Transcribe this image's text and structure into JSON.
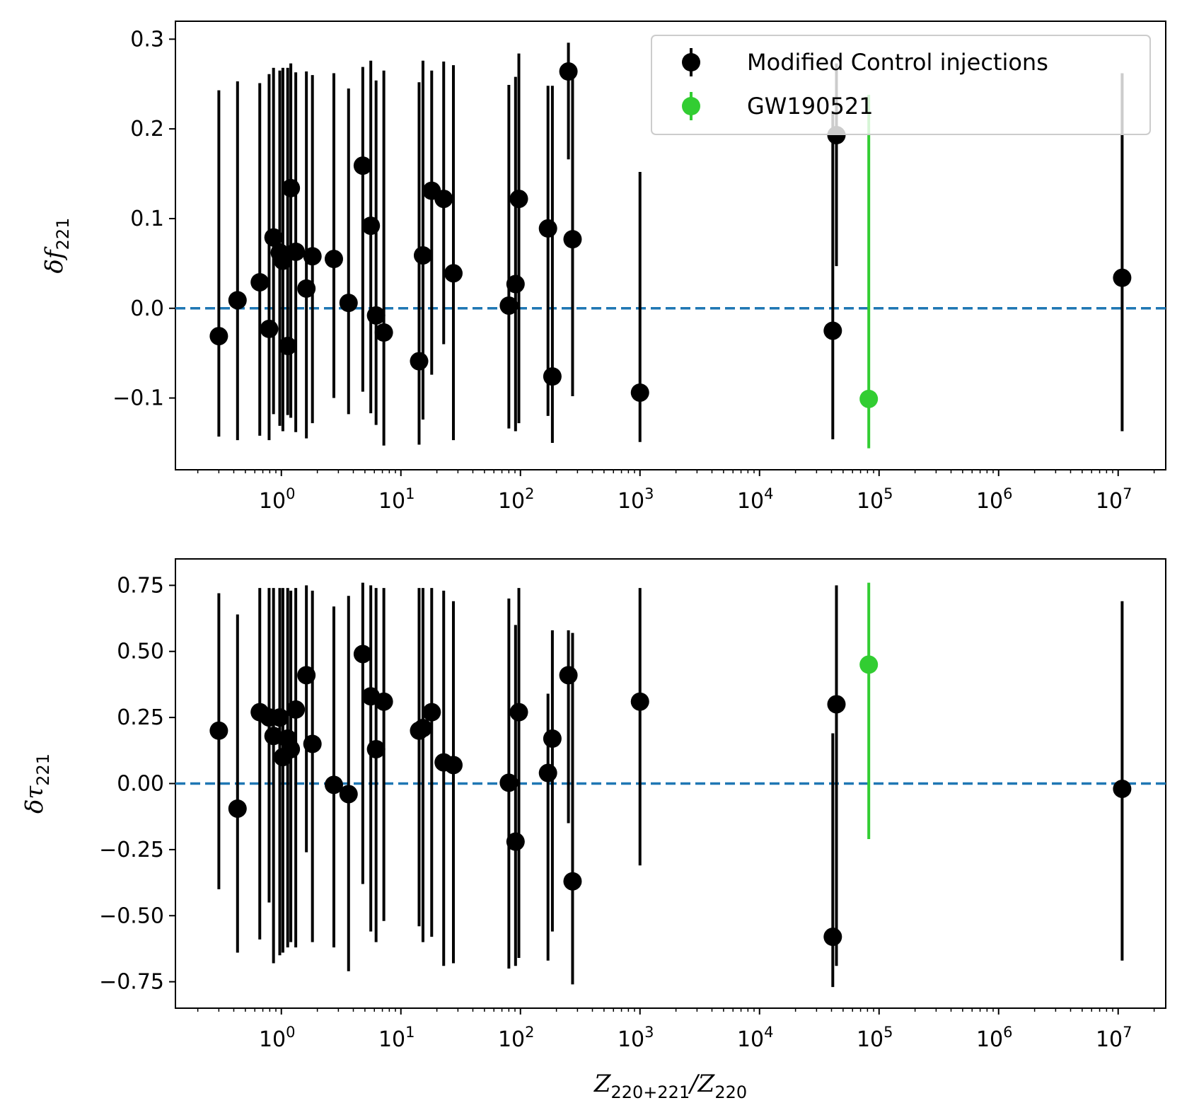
{
  "chart_data": [
    {
      "type": "scatter",
      "name": "delta-f221",
      "ylabel": "δf221",
      "ylabel_main": "δf",
      "ylabel_sub": "221",
      "xlabel": "",
      "xscale": "log",
      "xlim": [
        0.13,
        25000000
      ],
      "ylim": [
        -0.18,
        0.32
      ],
      "yticks": [
        -0.1,
        0.0,
        0.1,
        0.2,
        0.3
      ],
      "ytick_labels": [
        "−0.1",
        "0.0",
        "0.1",
        "0.2",
        "0.3"
      ],
      "xticks": [
        1,
        10,
        100,
        1000,
        10000,
        100000,
        1000000,
        10000000
      ],
      "xtick_labels": [
        {
          "base": "10",
          "exp": "0"
        },
        {
          "base": "10",
          "exp": "1"
        },
        {
          "base": "10",
          "exp": "2"
        },
        {
          "base": "10",
          "exp": "3"
        },
        {
          "base": "10",
          "exp": "4"
        },
        {
          "base": "10",
          "exp": "5"
        },
        {
          "base": "10",
          "exp": "6"
        },
        {
          "base": "10",
          "exp": "7"
        }
      ],
      "reference_line": {
        "y": 0.0,
        "style": "dashed",
        "color": "#1f77b4"
      },
      "legend": {
        "location": "top-right",
        "entries": [
          {
            "label": "Modified Control injections",
            "color": "#000000"
          },
          {
            "label": "GW190521",
            "color": "#32cd32"
          }
        ]
      },
      "series": [
        {
          "name": "Modified Control injections",
          "color": "#000000",
          "points": [
            {
              "x": 0.3,
              "y": -0.031,
              "lo": -0.143,
              "hi": 0.243
            },
            {
              "x": 0.43,
              "y": 0.009,
              "lo": -0.147,
              "hi": 0.253
            },
            {
              "x": 0.66,
              "y": 0.029,
              "lo": -0.142,
              "hi": 0.251
            },
            {
              "x": 0.79,
              "y": -0.023,
              "lo": -0.147,
              "hi": 0.261
            },
            {
              "x": 0.86,
              "y": 0.079,
              "lo": -0.118,
              "hi": 0.268
            },
            {
              "x": 0.97,
              "y": 0.062,
              "lo": -0.131,
              "hi": 0.265
            },
            {
              "x": 1.03,
              "y": 0.053,
              "lo": -0.137,
              "hi": 0.268
            },
            {
              "x": 1.13,
              "y": -0.042,
              "lo": -0.119,
              "hi": 0.268
            },
            {
              "x": 1.2,
              "y": 0.134,
              "lo": -0.122,
              "hi": 0.273
            },
            {
              "x": 1.32,
              "y": 0.063,
              "lo": -0.138,
              "hi": 0.263
            },
            {
              "x": 1.62,
              "y": 0.022,
              "lo": -0.145,
              "hi": 0.264
            },
            {
              "x": 1.82,
              "y": 0.058,
              "lo": -0.128,
              "hi": 0.26
            },
            {
              "x": 2.75,
              "y": 0.055,
              "lo": -0.1,
              "hi": 0.262
            },
            {
              "x": 3.65,
              "y": 0.006,
              "lo": -0.118,
              "hi": 0.245
            },
            {
              "x": 4.8,
              "y": 0.159,
              "lo": -0.093,
              "hi": 0.269
            },
            {
              "x": 5.6,
              "y": 0.092,
              "lo": -0.117,
              "hi": 0.276
            },
            {
              "x": 6.2,
              "y": -0.008,
              "lo": -0.13,
              "hi": 0.254
            },
            {
              "x": 7.2,
              "y": -0.027,
              "lo": -0.153,
              "hi": 0.265
            },
            {
              "x": 14.2,
              "y": -0.059,
              "lo": -0.152,
              "hi": 0.252
            },
            {
              "x": 15.3,
              "y": 0.059,
              "lo": -0.124,
              "hi": 0.276
            },
            {
              "x": 18.1,
              "y": 0.131,
              "lo": -0.074,
              "hi": 0.265
            },
            {
              "x": 22.8,
              "y": 0.122,
              "lo": -0.04,
              "hi": 0.275
            },
            {
              "x": 27.5,
              "y": 0.039,
              "lo": -0.147,
              "hi": 0.271
            },
            {
              "x": 80.0,
              "y": 0.003,
              "lo": -0.134,
              "hi": 0.249
            },
            {
              "x": 91.0,
              "y": 0.027,
              "lo": -0.137,
              "hi": 0.258
            },
            {
              "x": 97.0,
              "y": 0.122,
              "lo": -0.128,
              "hi": 0.284
            },
            {
              "x": 170.0,
              "y": 0.089,
              "lo": -0.12,
              "hi": 0.248
            },
            {
              "x": 185.0,
              "y": -0.076,
              "lo": -0.15,
              "hi": 0.248
            },
            {
              "x": 252.0,
              "y": 0.264,
              "lo": 0.166,
              "hi": 0.296
            },
            {
              "x": 273.0,
              "y": 0.077,
              "lo": -0.098,
              "hi": 0.26
            },
            {
              "x": 1000.0,
              "y": -0.094,
              "lo": -0.149,
              "hi": 0.152
            },
            {
              "x": 41000.0,
              "y": -0.025,
              "lo": -0.146,
              "hi": 0.22
            },
            {
              "x": 44000.0,
              "y": 0.193,
              "lo": 0.047,
              "hi": 0.273
            },
            {
              "x": 10800000.0,
              "y": 0.034,
              "lo": -0.137,
              "hi": 0.262
            }
          ]
        },
        {
          "name": "GW190521",
          "color": "#32cd32",
          "points": [
            {
              "x": 82000.0,
              "y": -0.101,
              "lo": -0.156,
              "hi": 0.238
            }
          ]
        }
      ]
    },
    {
      "type": "scatter",
      "name": "delta-tau221",
      "ylabel": "δτ221",
      "ylabel_main": "δτ",
      "ylabel_sub": "221",
      "xlabel": "Z220+221/Z220",
      "xlabel_parts": [
        {
          "t": "Z",
          "sub": false
        },
        {
          "t": "220+221",
          "sub": true
        },
        {
          "t": "/Z",
          "sub": false
        },
        {
          "t": "220",
          "sub": true
        }
      ],
      "xscale": "log",
      "xlim": [
        0.13,
        25000000
      ],
      "ylim": [
        -0.85,
        0.85
      ],
      "yticks": [
        -0.75,
        -0.5,
        -0.25,
        0.0,
        0.25,
        0.5,
        0.75
      ],
      "ytick_labels": [
        "−0.75",
        "−0.50",
        "−0.25",
        "0.00",
        "0.25",
        "0.50",
        "0.75"
      ],
      "xticks": [
        1,
        10,
        100,
        1000,
        10000,
        100000,
        1000000,
        10000000
      ],
      "xtick_labels": [
        {
          "base": "10",
          "exp": "0"
        },
        {
          "base": "10",
          "exp": "1"
        },
        {
          "base": "10",
          "exp": "2"
        },
        {
          "base": "10",
          "exp": "3"
        },
        {
          "base": "10",
          "exp": "4"
        },
        {
          "base": "10",
          "exp": "5"
        },
        {
          "base": "10",
          "exp": "6"
        },
        {
          "base": "10",
          "exp": "7"
        }
      ],
      "reference_line": {
        "y": 0.0,
        "style": "dashed",
        "color": "#1f77b4"
      },
      "series": [
        {
          "name": "Modified Control injections",
          "color": "#000000",
          "points": [
            {
              "x": 0.3,
              "y": 0.2,
              "lo": -0.4,
              "hi": 0.72
            },
            {
              "x": 0.43,
              "y": -0.095,
              "lo": -0.64,
              "hi": 0.64
            },
            {
              "x": 0.66,
              "y": 0.27,
              "lo": -0.59,
              "hi": 0.74
            },
            {
              "x": 0.79,
              "y": 0.25,
              "lo": -0.45,
              "hi": 0.74
            },
            {
              "x": 0.86,
              "y": 0.18,
              "lo": -0.68,
              "hi": 0.74
            },
            {
              "x": 0.97,
              "y": 0.25,
              "lo": -0.65,
              "hi": 0.74
            },
            {
              "x": 1.03,
              "y": 0.1,
              "lo": -0.64,
              "hi": 0.74
            },
            {
              "x": 1.13,
              "y": 0.17,
              "lo": -0.62,
              "hi": 0.74
            },
            {
              "x": 1.2,
              "y": 0.13,
              "lo": -0.6,
              "hi": 0.73
            },
            {
              "x": 1.32,
              "y": 0.28,
              "lo": -0.62,
              "hi": 0.74
            },
            {
              "x": 1.62,
              "y": 0.41,
              "lo": -0.26,
              "hi": 0.75
            },
            {
              "x": 1.82,
              "y": 0.15,
              "lo": -0.6,
              "hi": 0.73
            },
            {
              "x": 2.75,
              "y": -0.005,
              "lo": -0.62,
              "hi": 0.67
            },
            {
              "x": 3.65,
              "y": -0.04,
              "lo": -0.71,
              "hi": 0.71
            },
            {
              "x": 4.8,
              "y": 0.49,
              "lo": -0.38,
              "hi": 0.76
            },
            {
              "x": 5.6,
              "y": 0.33,
              "lo": -0.56,
              "hi": 0.75
            },
            {
              "x": 6.2,
              "y": 0.13,
              "lo": -0.6,
              "hi": 0.74
            },
            {
              "x": 7.2,
              "y": 0.31,
              "lo": -0.52,
              "hi": 0.74
            },
            {
              "x": 14.2,
              "y": 0.2,
              "lo": -0.54,
              "hi": 0.74
            },
            {
              "x": 15.3,
              "y": 0.21,
              "lo": -0.6,
              "hi": 0.74
            },
            {
              "x": 18.1,
              "y": 0.27,
              "lo": -0.58,
              "hi": 0.74
            },
            {
              "x": 22.8,
              "y": 0.08,
              "lo": -0.69,
              "hi": 0.73
            },
            {
              "x": 27.5,
              "y": 0.07,
              "lo": -0.68,
              "hi": 0.69
            },
            {
              "x": 80.0,
              "y": 0.003,
              "lo": -0.7,
              "hi": 0.7
            },
            {
              "x": 91.0,
              "y": -0.22,
              "lo": -0.69,
              "hi": 0.6
            },
            {
              "x": 97.0,
              "y": 0.27,
              "lo": -0.66,
              "hi": 0.74
            },
            {
              "x": 170.0,
              "y": 0.04,
              "lo": -0.67,
              "hi": 0.34
            },
            {
              "x": 185.0,
              "y": 0.17,
              "lo": -0.56,
              "hi": 0.58
            },
            {
              "x": 252.0,
              "y": 0.41,
              "lo": -0.15,
              "hi": 0.58
            },
            {
              "x": 273.0,
              "y": -0.37,
              "lo": -0.76,
              "hi": 0.57
            },
            {
              "x": 1000.0,
              "y": 0.31,
              "lo": -0.31,
              "hi": 0.74
            },
            {
              "x": 41000.0,
              "y": -0.58,
              "lo": -0.77,
              "hi": 0.19
            },
            {
              "x": 44000.0,
              "y": 0.3,
              "lo": -0.69,
              "hi": 0.75
            },
            {
              "x": 10800000.0,
              "y": -0.02,
              "lo": -0.67,
              "hi": 0.69
            }
          ]
        },
        {
          "name": "GW190521",
          "color": "#32cd32",
          "points": [
            {
              "x": 82000.0,
              "y": 0.45,
              "lo": -0.21,
              "hi": 0.76
            }
          ]
        }
      ]
    }
  ]
}
